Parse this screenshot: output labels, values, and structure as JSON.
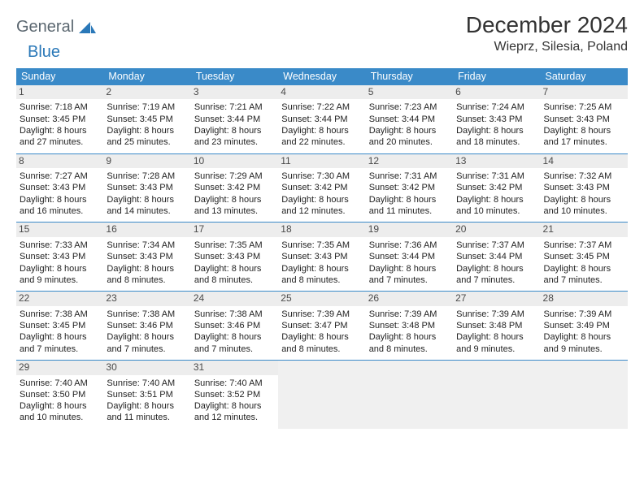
{
  "branding": {
    "word1": "General",
    "word2": "Blue",
    "logo_fill": "#2a78b8",
    "logo_text_color": "#5b6770"
  },
  "header": {
    "month_title": "December 2024",
    "location": "Wieprz, Silesia, Poland"
  },
  "styling": {
    "header_row_bg": "#3a8ac8",
    "header_row_text": "#ffffff",
    "daynum_bg": "#ededed",
    "cell_border": "#3a8ac8",
    "body_text": "#232323",
    "empty_bg": "#f0f0f0"
  },
  "weekdays": [
    "Sunday",
    "Monday",
    "Tuesday",
    "Wednesday",
    "Thursday",
    "Friday",
    "Saturday"
  ],
  "days": [
    {
      "n": "1",
      "sunrise": "7:18 AM",
      "sunset": "3:45 PM",
      "daylight": "8 hours and 27 minutes."
    },
    {
      "n": "2",
      "sunrise": "7:19 AM",
      "sunset": "3:45 PM",
      "daylight": "8 hours and 25 minutes."
    },
    {
      "n": "3",
      "sunrise": "7:21 AM",
      "sunset": "3:44 PM",
      "daylight": "8 hours and 23 minutes."
    },
    {
      "n": "4",
      "sunrise": "7:22 AM",
      "sunset": "3:44 PM",
      "daylight": "8 hours and 22 minutes."
    },
    {
      "n": "5",
      "sunrise": "7:23 AM",
      "sunset": "3:44 PM",
      "daylight": "8 hours and 20 minutes."
    },
    {
      "n": "6",
      "sunrise": "7:24 AM",
      "sunset": "3:43 PM",
      "daylight": "8 hours and 18 minutes."
    },
    {
      "n": "7",
      "sunrise": "7:25 AM",
      "sunset": "3:43 PM",
      "daylight": "8 hours and 17 minutes."
    },
    {
      "n": "8",
      "sunrise": "7:27 AM",
      "sunset": "3:43 PM",
      "daylight": "8 hours and 16 minutes."
    },
    {
      "n": "9",
      "sunrise": "7:28 AM",
      "sunset": "3:43 PM",
      "daylight": "8 hours and 14 minutes."
    },
    {
      "n": "10",
      "sunrise": "7:29 AM",
      "sunset": "3:42 PM",
      "daylight": "8 hours and 13 minutes."
    },
    {
      "n": "11",
      "sunrise": "7:30 AM",
      "sunset": "3:42 PM",
      "daylight": "8 hours and 12 minutes."
    },
    {
      "n": "12",
      "sunrise": "7:31 AM",
      "sunset": "3:42 PM",
      "daylight": "8 hours and 11 minutes."
    },
    {
      "n": "13",
      "sunrise": "7:31 AM",
      "sunset": "3:42 PM",
      "daylight": "8 hours and 10 minutes."
    },
    {
      "n": "14",
      "sunrise": "7:32 AM",
      "sunset": "3:43 PM",
      "daylight": "8 hours and 10 minutes."
    },
    {
      "n": "15",
      "sunrise": "7:33 AM",
      "sunset": "3:43 PM",
      "daylight": "8 hours and 9 minutes."
    },
    {
      "n": "16",
      "sunrise": "7:34 AM",
      "sunset": "3:43 PM",
      "daylight": "8 hours and 8 minutes."
    },
    {
      "n": "17",
      "sunrise": "7:35 AM",
      "sunset": "3:43 PM",
      "daylight": "8 hours and 8 minutes."
    },
    {
      "n": "18",
      "sunrise": "7:35 AM",
      "sunset": "3:43 PM",
      "daylight": "8 hours and 8 minutes."
    },
    {
      "n": "19",
      "sunrise": "7:36 AM",
      "sunset": "3:44 PM",
      "daylight": "8 hours and 7 minutes."
    },
    {
      "n": "20",
      "sunrise": "7:37 AM",
      "sunset": "3:44 PM",
      "daylight": "8 hours and 7 minutes."
    },
    {
      "n": "21",
      "sunrise": "7:37 AM",
      "sunset": "3:45 PM",
      "daylight": "8 hours and 7 minutes."
    },
    {
      "n": "22",
      "sunrise": "7:38 AM",
      "sunset": "3:45 PM",
      "daylight": "8 hours and 7 minutes."
    },
    {
      "n": "23",
      "sunrise": "7:38 AM",
      "sunset": "3:46 PM",
      "daylight": "8 hours and 7 minutes."
    },
    {
      "n": "24",
      "sunrise": "7:38 AM",
      "sunset": "3:46 PM",
      "daylight": "8 hours and 7 minutes."
    },
    {
      "n": "25",
      "sunrise": "7:39 AM",
      "sunset": "3:47 PM",
      "daylight": "8 hours and 8 minutes."
    },
    {
      "n": "26",
      "sunrise": "7:39 AM",
      "sunset": "3:48 PM",
      "daylight": "8 hours and 8 minutes."
    },
    {
      "n": "27",
      "sunrise": "7:39 AM",
      "sunset": "3:48 PM",
      "daylight": "8 hours and 9 minutes."
    },
    {
      "n": "28",
      "sunrise": "7:39 AM",
      "sunset": "3:49 PM",
      "daylight": "8 hours and 9 minutes."
    },
    {
      "n": "29",
      "sunrise": "7:40 AM",
      "sunset": "3:50 PM",
      "daylight": "8 hours and 10 minutes."
    },
    {
      "n": "30",
      "sunrise": "7:40 AM",
      "sunset": "3:51 PM",
      "daylight": "8 hours and 11 minutes."
    },
    {
      "n": "31",
      "sunrise": "7:40 AM",
      "sunset": "3:52 PM",
      "daylight": "8 hours and 12 minutes."
    }
  ],
  "labels": {
    "sunrise_prefix": "Sunrise: ",
    "sunset_prefix": "Sunset: ",
    "daylight_prefix": "Daylight: "
  },
  "grid": {
    "rows": 5,
    "cols": 7,
    "start_weekday_index": 0,
    "trailing_empty": 4
  }
}
